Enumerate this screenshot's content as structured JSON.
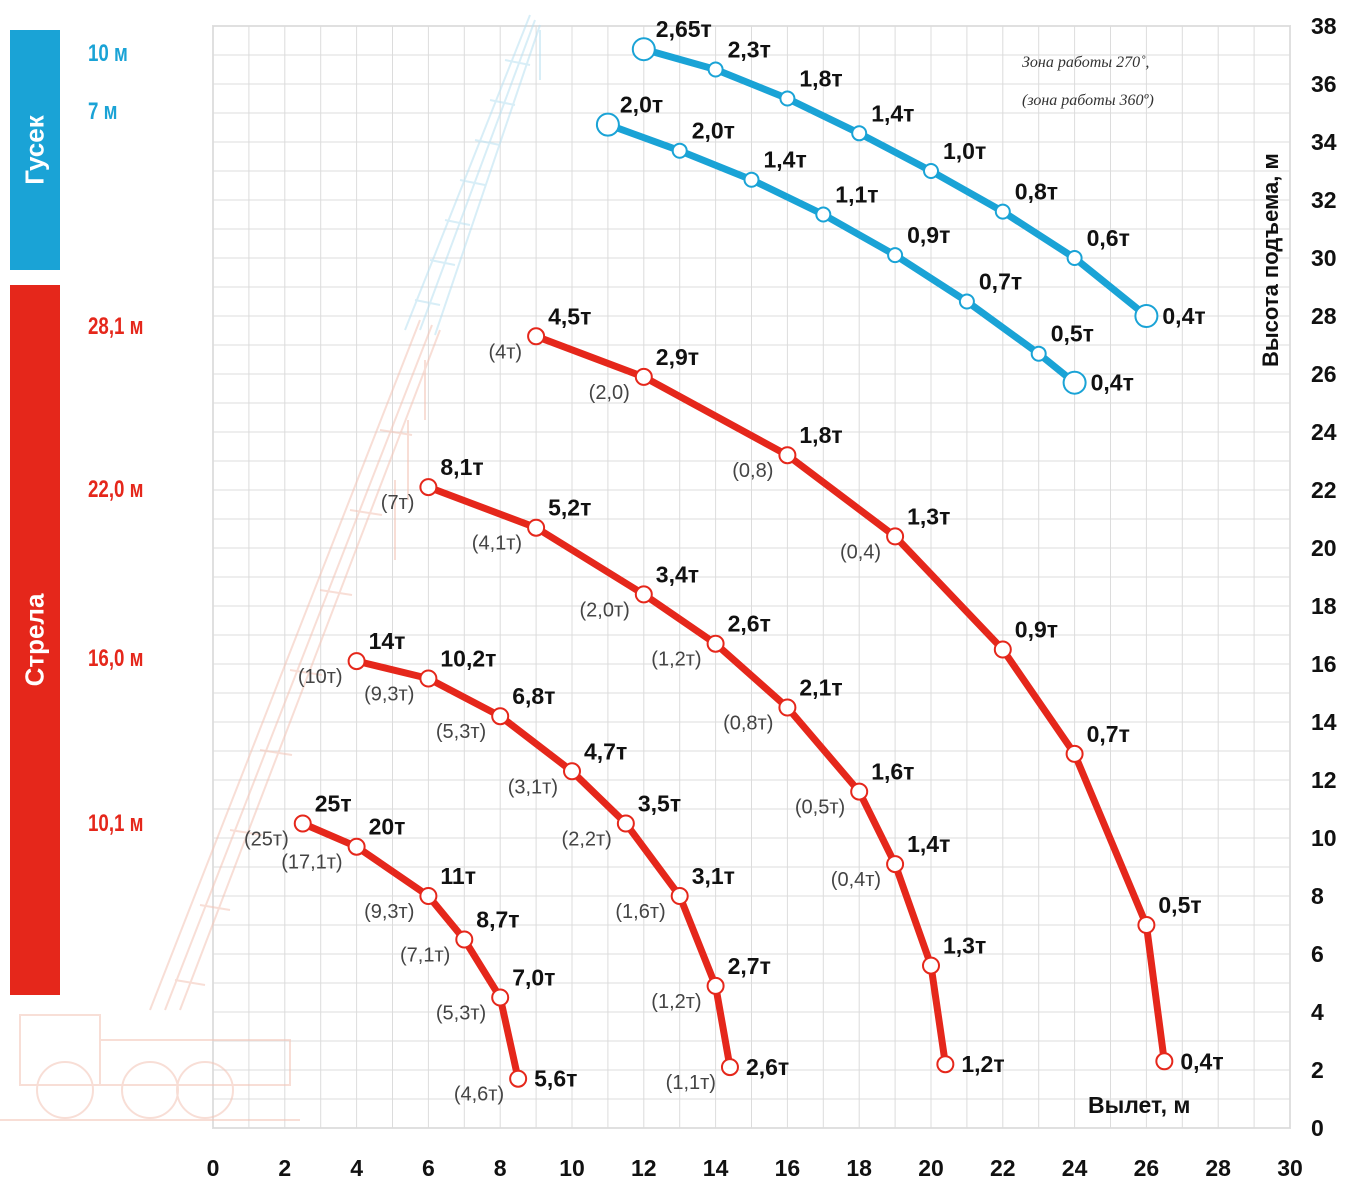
{
  "sidebar": {
    "jib_title": "Гусек",
    "boom_title": "Стрела",
    "jib_lengths": [
      "10 м",
      "7 м"
    ],
    "boom_lengths": [
      "28,1 м",
      "22,0 м",
      "16,0 м",
      "10,1 м"
    ],
    "jib_color": "#1aa3d6",
    "boom_color": "#e5271b"
  },
  "note": {
    "line1": "Зона работы 270˚,",
    "line2": "(зона работы 360º)"
  },
  "chart_data": {
    "type": "line",
    "title": "",
    "xlabel": "Вылет, м",
    "ylabel": "Высота подъема, м",
    "xlim": [
      0,
      30
    ],
    "ylim": [
      0,
      38
    ],
    "xticks": [
      "0",
      "2",
      "4",
      "6",
      "8",
      "10",
      "12",
      "14",
      "16",
      "18",
      "20",
      "22",
      "24",
      "26",
      "28",
      "30"
    ],
    "yticks": [
      "0",
      "2",
      "4",
      "6",
      "8",
      "10",
      "12",
      "14",
      "16",
      "18",
      "20",
      "22",
      "24",
      "26",
      "28",
      "30",
      "32",
      "34",
      "36",
      "38"
    ],
    "grid": true,
    "series": [
      {
        "group": "boom",
        "color": "#e5271b",
        "points": [
          {
            "x": 2.5,
            "y": 10.5,
            "label": "25т",
            "sub": "(25т)"
          },
          {
            "x": 4.0,
            "y": 9.7,
            "label": "20т",
            "sub": "(17,1т)"
          },
          {
            "x": 6.0,
            "y": 8.0,
            "label": "11т",
            "sub": "(9,3т)"
          },
          {
            "x": 7.0,
            "y": 6.5,
            "label": "8,7т",
            "sub": "(7,1т)"
          },
          {
            "x": 8.0,
            "y": 4.5,
            "label": "7,0т",
            "sub": "(5,3т)"
          },
          {
            "x": 8.5,
            "y": 1.7,
            "label": "5,6т",
            "sub": "(4,6т)"
          }
        ]
      },
      {
        "group": "boom",
        "color": "#e5271b",
        "points": [
          {
            "x": 4.0,
            "y": 16.1,
            "label": "14т",
            "sub": "(10т)"
          },
          {
            "x": 6.0,
            "y": 15.5,
            "label": "10,2т",
            "sub": "(9,3т)"
          },
          {
            "x": 8.0,
            "y": 14.2,
            "label": "6,8т",
            "sub": "(5,3т)"
          },
          {
            "x": 10.0,
            "y": 12.3,
            "label": "4,7т",
            "sub": "(3,1т)"
          },
          {
            "x": 11.5,
            "y": 10.5,
            "label": "3,5т",
            "sub": "(2,2т)"
          },
          {
            "x": 13.0,
            "y": 8.0,
            "label": "3,1т",
            "sub": "(1,6т)"
          },
          {
            "x": 14.0,
            "y": 4.9,
            "label": "2,7т",
            "sub": "(1,2т)"
          },
          {
            "x": 14.4,
            "y": 2.1,
            "label": "2,6т",
            "sub": "(1,1т)"
          }
        ]
      },
      {
        "group": "boom",
        "color": "#e5271b",
        "points": [
          {
            "x": 6.0,
            "y": 22.1,
            "label": "8,1т",
            "sub": "(7т)"
          },
          {
            "x": 9.0,
            "y": 20.7,
            "label": "5,2т",
            "sub": "(4,1т)"
          },
          {
            "x": 12.0,
            "y": 18.4,
            "label": "3,4т",
            "sub": "(2,0т)"
          },
          {
            "x": 14.0,
            "y": 16.7,
            "label": "2,6т",
            "sub": "(1,2т)"
          },
          {
            "x": 16.0,
            "y": 14.5,
            "label": "2,1т",
            "sub": "(0,8т)"
          },
          {
            "x": 18.0,
            "y": 11.6,
            "label": "1,6т",
            "sub": "(0,5т)"
          },
          {
            "x": 19.0,
            "y": 9.1,
            "label": "1,4т",
            "sub": "(0,4т)"
          },
          {
            "x": 20.0,
            "y": 5.6,
            "label": "1,3т",
            "sub": ""
          },
          {
            "x": 20.4,
            "y": 2.2,
            "label": "1,2т",
            "sub": ""
          }
        ]
      },
      {
        "group": "boom",
        "color": "#e5271b",
        "points": [
          {
            "x": 9.0,
            "y": 27.3,
            "label": "4,5т",
            "sub": "(4т)"
          },
          {
            "x": 12.0,
            "y": 25.9,
            "label": "2,9т",
            "sub": "(2,0)"
          },
          {
            "x": 16.0,
            "y": 23.2,
            "label": "1,8т",
            "sub": "(0,8)"
          },
          {
            "x": 19.0,
            "y": 20.4,
            "label": "1,3т",
            "sub": "(0,4)"
          },
          {
            "x": 22.0,
            "y": 16.5,
            "label": "0,9т",
            "sub": ""
          },
          {
            "x": 24.0,
            "y": 12.9,
            "label": "0,7т",
            "sub": ""
          },
          {
            "x": 26.0,
            "y": 7.0,
            "label": "0,5т",
            "sub": ""
          },
          {
            "x": 26.5,
            "y": 2.3,
            "label": "0,4т",
            "sub": ""
          }
        ]
      },
      {
        "group": "jib",
        "color": "#1aa3d6",
        "points": [
          {
            "x": 11.0,
            "y": 34.6,
            "label": "2,0т",
            "sub": ""
          },
          {
            "x": 13.0,
            "y": 33.7,
            "label": "2,0т",
            "sub": ""
          },
          {
            "x": 15.0,
            "y": 32.7,
            "label": "1,4т",
            "sub": ""
          },
          {
            "x": 17.0,
            "y": 31.5,
            "label": "1,1т",
            "sub": ""
          },
          {
            "x": 19.0,
            "y": 30.1,
            "label": "0,9т",
            "sub": ""
          },
          {
            "x": 21.0,
            "y": 28.5,
            "label": "0,7т",
            "sub": ""
          },
          {
            "x": 23.0,
            "y": 26.7,
            "label": "0,5т",
            "sub": ""
          },
          {
            "x": 24.0,
            "y": 25.7,
            "label": "0,4т",
            "sub": ""
          }
        ]
      },
      {
        "group": "jib",
        "color": "#1aa3d6",
        "points": [
          {
            "x": 12.0,
            "y": 37.2,
            "label": "2,65т",
            "sub": ""
          },
          {
            "x": 14.0,
            "y": 36.5,
            "label": "2,3т",
            "sub": ""
          },
          {
            "x": 16.0,
            "y": 35.5,
            "label": "1,8т",
            "sub": ""
          },
          {
            "x": 18.0,
            "y": 34.3,
            "label": "1,4т",
            "sub": ""
          },
          {
            "x": 20.0,
            "y": 33.0,
            "label": "1,0т",
            "sub": ""
          },
          {
            "x": 22.0,
            "y": 31.6,
            "label": "0,8т",
            "sub": ""
          },
          {
            "x": 24.0,
            "y": 30.0,
            "label": "0,6т",
            "sub": ""
          },
          {
            "x": 26.0,
            "y": 28.0,
            "label": "0,4т",
            "sub": ""
          }
        ]
      }
    ]
  }
}
